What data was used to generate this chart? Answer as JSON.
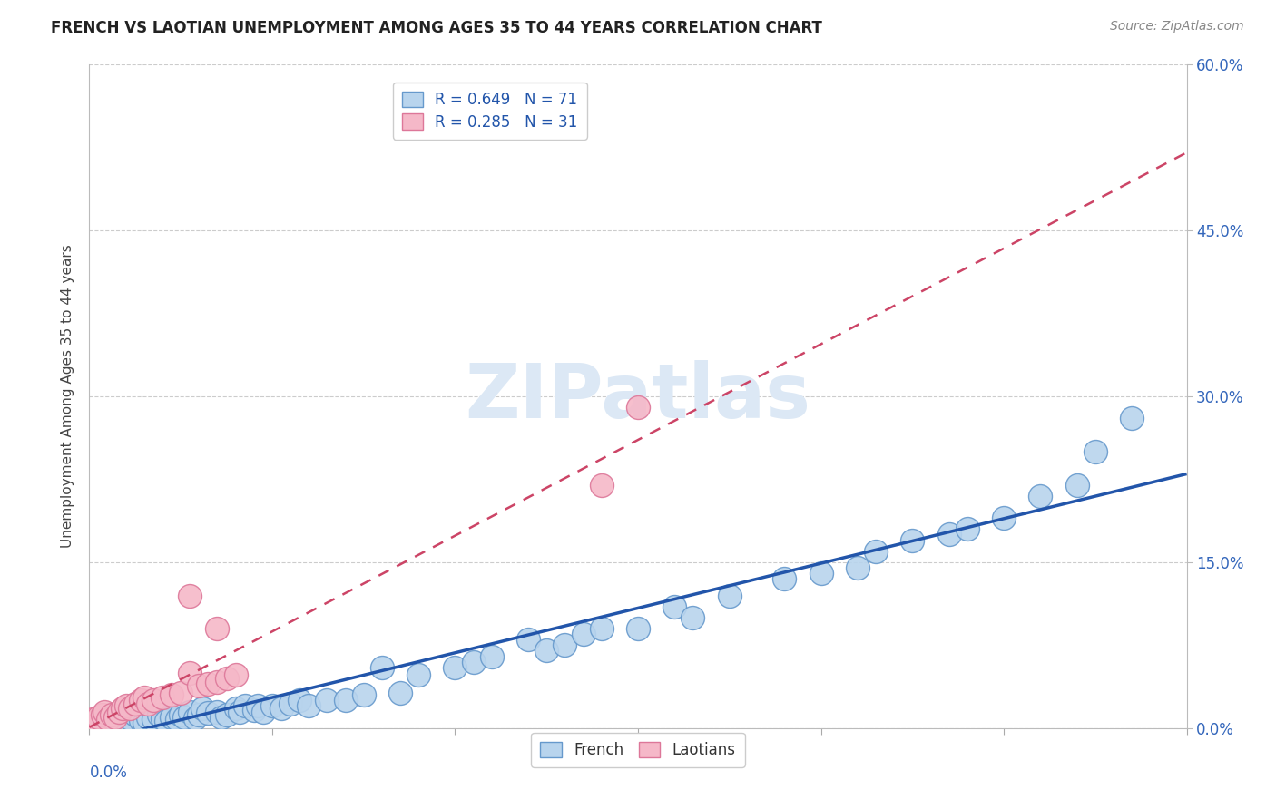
{
  "title": "FRENCH VS LAOTIAN UNEMPLOYMENT AMONG AGES 35 TO 44 YEARS CORRELATION CHART",
  "source": "Source: ZipAtlas.com",
  "ylabel": "Unemployment Among Ages 35 to 44 years",
  "ytick_vals": [
    0.0,
    0.15,
    0.3,
    0.45,
    0.6
  ],
  "xlim": [
    0.0,
    0.6
  ],
  "ylim": [
    0.0,
    0.6
  ],
  "legend_french_R": "R = 0.649",
  "legend_french_N": "N = 71",
  "legend_laotian_R": "R = 0.285",
  "legend_laotian_N": "N = 31",
  "french_color": "#b8d4ed",
  "french_edge": "#6699cc",
  "laotian_color": "#f5b8c8",
  "laotian_edge": "#dd7799",
  "french_line_color": "#2255aa",
  "laotian_line_color": "#cc4466",
  "background_color": "#ffffff",
  "grid_color": "#cccccc",
  "title_color": "#222222",
  "source_color": "#888888",
  "axis_label_color": "#3366bb",
  "legend_text_color": "#2255aa",
  "watermark_color": "#dce8f5",
  "french_x": [
    0.003,
    0.005,
    0.007,
    0.009,
    0.01,
    0.012,
    0.015,
    0.018,
    0.02,
    0.022,
    0.025,
    0.028,
    0.03,
    0.032,
    0.035,
    0.038,
    0.04,
    0.042,
    0.045,
    0.048,
    0.05,
    0.052,
    0.055,
    0.058,
    0.06,
    0.062,
    0.065,
    0.07,
    0.072,
    0.075,
    0.08,
    0.082,
    0.085,
    0.09,
    0.092,
    0.095,
    0.1,
    0.105,
    0.11,
    0.115,
    0.12,
    0.13,
    0.14,
    0.15,
    0.16,
    0.17,
    0.18,
    0.2,
    0.21,
    0.22,
    0.24,
    0.25,
    0.26,
    0.27,
    0.28,
    0.3,
    0.32,
    0.33,
    0.35,
    0.38,
    0.4,
    0.42,
    0.43,
    0.45,
    0.47,
    0.48,
    0.5,
    0.52,
    0.54,
    0.55,
    0.57
  ],
  "french_y": [
    0.005,
    0.008,
    0.003,
    0.007,
    0.01,
    0.005,
    0.008,
    0.012,
    0.006,
    0.009,
    0.012,
    0.007,
    0.005,
    0.01,
    0.008,
    0.012,
    0.009,
    0.006,
    0.01,
    0.008,
    0.012,
    0.01,
    0.015,
    0.009,
    0.012,
    0.018,
    0.014,
    0.015,
    0.01,
    0.012,
    0.018,
    0.015,
    0.02,
    0.016,
    0.02,
    0.015,
    0.02,
    0.018,
    0.022,
    0.025,
    0.02,
    0.025,
    0.025,
    0.03,
    0.055,
    0.032,
    0.048,
    0.055,
    0.06,
    0.065,
    0.08,
    0.07,
    0.075,
    0.085,
    0.09,
    0.09,
    0.11,
    0.1,
    0.12,
    0.135,
    0.14,
    0.145,
    0.16,
    0.17,
    0.175,
    0.18,
    0.19,
    0.21,
    0.22,
    0.25,
    0.28
  ],
  "laotian_x": [
    0.0,
    0.002,
    0.004,
    0.005,
    0.007,
    0.008,
    0.01,
    0.012,
    0.014,
    0.016,
    0.018,
    0.02,
    0.022,
    0.025,
    0.028,
    0.03,
    0.032,
    0.035,
    0.04,
    0.045,
    0.05,
    0.055,
    0.06,
    0.065,
    0.07,
    0.075,
    0.08,
    0.055,
    0.07,
    0.28,
    0.3
  ],
  "laotian_y": [
    0.005,
    0.008,
    0.006,
    0.01,
    0.012,
    0.015,
    0.008,
    0.012,
    0.01,
    0.015,
    0.018,
    0.02,
    0.018,
    0.022,
    0.025,
    0.028,
    0.022,
    0.025,
    0.028,
    0.03,
    0.032,
    0.05,
    0.038,
    0.04,
    0.042,
    0.045,
    0.048,
    0.12,
    0.09,
    0.22,
    0.29
  ]
}
